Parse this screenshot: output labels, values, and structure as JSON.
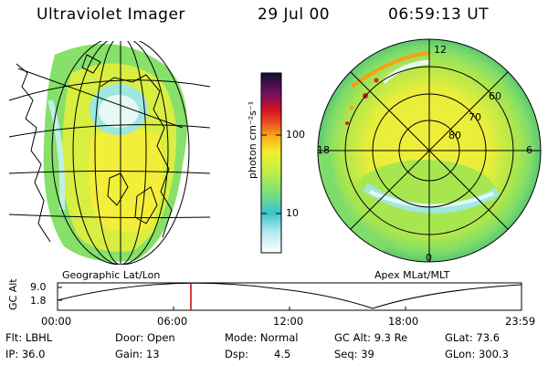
{
  "header": {
    "instrument": "Ultraviolet Imager",
    "date": "29 Jul 00",
    "time": "06:59:13 UT"
  },
  "colorbar": {
    "unit_label": "photon cm⁻²s⁻¹",
    "ticks": [
      "100",
      "10"
    ]
  },
  "geo_panel": {
    "caption": "Geographic Lat/Lon"
  },
  "polar_panel": {
    "caption": "Apex MLat/MLT",
    "mlt_labels": {
      "top": "12",
      "left": "18",
      "right": "6",
      "bottom": "0"
    },
    "lat_labels": [
      "60",
      "70",
      "80"
    ]
  },
  "timeline": {
    "axis_label": "GC Alt",
    "y_ticks": [
      "9.0",
      "1.8"
    ],
    "x_ticks": [
      "00:00",
      "06:00",
      "12:00",
      "18:00",
      "23:59"
    ],
    "marker_time": "06:59",
    "marker_color": "#cc0000"
  },
  "status": {
    "filter": "Flt: LBHL",
    "door": "Door: Open",
    "mode": "Mode: Normal",
    "gc_alt": "GC Alt: 9.3 Re",
    "glat": "GLat:  73.6",
    "ip": "IP: 36.0",
    "gain": "Gain: 13",
    "dsp_label": "Dsp:",
    "dsp_value": "4.5",
    "seq": "Seq: 39",
    "glon": "GLon: 300.3"
  },
  "colors": {
    "aurora_yellow": "#f2ee3a",
    "aurora_green": "#86e06a",
    "aurora_cyan": "#4cc8c8",
    "aurora_orange": "#f4a018",
    "aurora_red": "#e02020"
  }
}
